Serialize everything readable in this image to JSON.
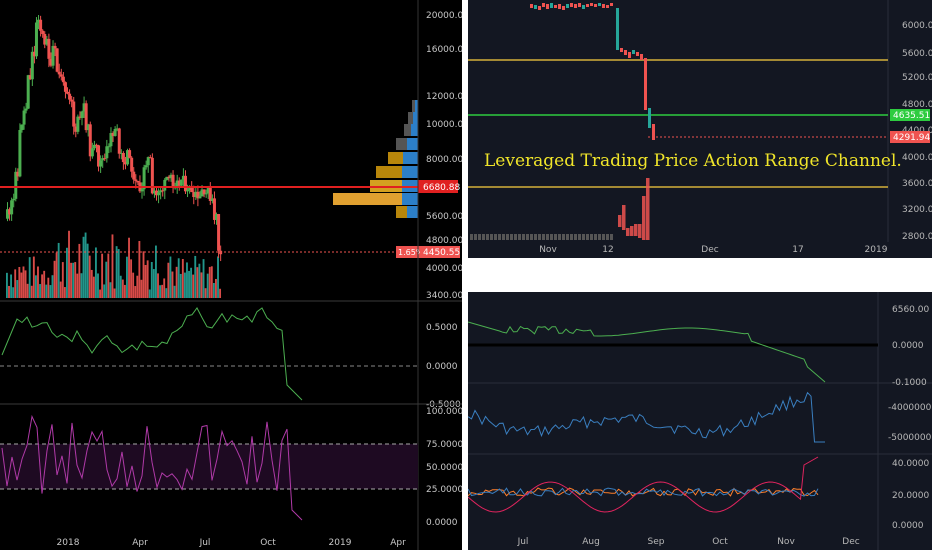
{
  "left_chart": {
    "price_ticks": [
      "20000.00",
      "16000.00",
      "12000.00",
      "10000.00",
      "8000.00",
      "6680.88",
      "5600.00",
      "4800.00",
      "4450.55",
      "4000.00",
      "3400.00"
    ],
    "current_price_label": "6680.88",
    "change_badge": "1.65%",
    "last_price_label": "4450.55",
    "osc_ticks": [
      "0.5000",
      "0.0000",
      "-0.5000"
    ],
    "rsi_ticks": [
      "100.0000",
      "75.0000",
      "50.0000",
      "25.0000",
      "0.0000"
    ],
    "x_ticks": [
      "2018",
      "Apr",
      "Jul",
      "Oct",
      "2019",
      "Apr"
    ]
  },
  "top_right_chart": {
    "price_ticks": [
      "6000.00",
      "5600.00",
      "5200.00",
      "4800.00",
      "4400.00",
      "4000.00",
      "3600.00",
      "3200.00",
      "2800.00"
    ],
    "green_label": "4635.51",
    "red_label": "4291.94",
    "annotation": "Leveraged Trading Price Action Range Channel.",
    "x_ticks": [
      "Nov",
      "12",
      "Dec",
      "17",
      "2019"
    ]
  },
  "bottom_right_chart": {
    "top_ticks": [
      "6560.00",
      "0.0000",
      "-0.1000"
    ],
    "mid_ticks": [
      "-4000000.0000",
      "-5000000.0000"
    ],
    "bot_ticks": [
      "40.0000",
      "20.0000",
      "0.0000"
    ],
    "x_ticks": [
      "Jul",
      "Aug",
      "Sep",
      "Oct",
      "Nov",
      "Dec"
    ]
  },
  "colors": {
    "bull": "#26a69a",
    "bull_candle": "#4caf50",
    "bear": "#ef5350",
    "red_level": "#e02020",
    "yellow_level": "#d4b13a",
    "green_level": "#2ecc40",
    "osc_line": "#4caf50",
    "rsi_line": "#b03aa8",
    "blue_line": "#3a7fc0",
    "orange_line": "#ff7f2a",
    "pink_line": "#e0245e"
  },
  "chart_data": [
    {
      "type": "candlestick",
      "title": "",
      "ylim": [
        3400,
        20000
      ],
      "x_ticks": [
        "2018",
        "Apr",
        "Jul",
        "Oct",
        "2019",
        "Apr"
      ],
      "approx_weekly_close": [
        5800,
        6300,
        7200,
        9800,
        11000,
        13500,
        15500,
        19000,
        18000,
        16800,
        15000,
        16500,
        14000,
        13500,
        12000,
        11500,
        9800,
        10500,
        11200,
        9700,
        8400,
        9000,
        7800,
        8100,
        8900,
        9300,
        9600,
        8500,
        7900,
        8300,
        7200,
        6800,
        6700,
        7500,
        8200,
        6600,
        6400,
        6500,
        7200,
        7300,
        6500,
        6800,
        7000,
        6700,
        6600,
        6500,
        6400,
        6600,
        6500,
        6300,
        5600,
        4450
      ],
      "levels": [
        6680.88
      ],
      "last_price": 4450.55
    },
    {
      "type": "candlestick",
      "title": "",
      "ylim": [
        2800,
        6200
      ],
      "x_ticks": [
        "Nov",
        "12",
        "Dec",
        "17",
        "2019"
      ],
      "levels": [
        5500,
        4635.51,
        3560
      ],
      "last_price": 4291.94,
      "annotation": "Leveraged Trading Price Action Range Channel."
    },
    {
      "type": "line",
      "title": "",
      "x_ticks": [
        "Jul",
        "Aug",
        "Sep",
        "Oct",
        "Nov",
        "Dec"
      ],
      "series": [
        {
          "values": [
            40,
            38,
            42,
            45,
            40,
            43,
            41,
            44,
            39,
            36,
            33,
            30,
            28,
            25,
            22,
            18,
            10,
            4
          ]
        }
      ]
    }
  ]
}
